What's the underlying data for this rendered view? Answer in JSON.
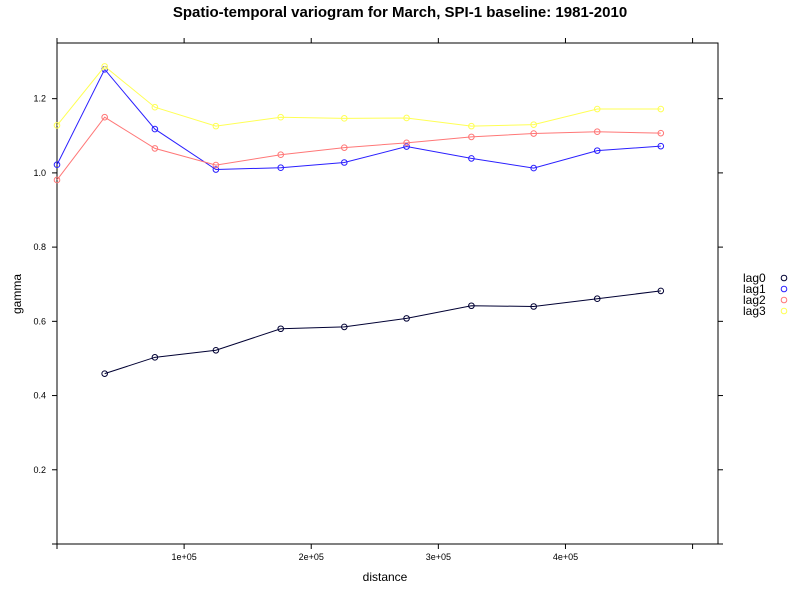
{
  "chart_data": {
    "type": "line",
    "title": "Spatio-temporal variogram for March, SPI-1 baseline: 1981-2010",
    "xlabel": "distance",
    "ylabel": "gamma",
    "xlim": [
      0,
      520000
    ],
    "ylim": [
      0,
      1.35
    ],
    "x_ticks": [
      {
        "value": 100000,
        "label": "1e+05"
      },
      {
        "value": 200000,
        "label": "2e+05"
      },
      {
        "value": 300000,
        "label": "3e+05"
      },
      {
        "value": 400000,
        "label": "4e+05"
      }
    ],
    "y_ticks": [
      {
        "value": 0.2,
        "label": "0.2"
      },
      {
        "value": 0.4,
        "label": "0.4"
      },
      {
        "value": 0.6,
        "label": "0.6"
      },
      {
        "value": 0.8,
        "label": "0.8"
      },
      {
        "value": 1.0,
        "label": "1.0"
      },
      {
        "value": 1.2,
        "label": "1.2"
      }
    ],
    "legend_position": "right",
    "grid": false,
    "series": [
      {
        "name": "lag0",
        "color": "#000033",
        "x": [
          37500,
          77000,
          125000,
          176000,
          226000,
          275000,
          326000,
          375000,
          425000,
          475000
        ],
        "y": [
          0.459,
          0.503,
          0.522,
          0.58,
          0.585,
          0.608,
          0.642,
          0.64,
          0.661,
          0.682
        ]
      },
      {
        "name": "lag1",
        "color": "#2a1fff",
        "x": [
          0,
          37500,
          77000,
          125000,
          176000,
          226000,
          275000,
          326000,
          375000,
          425000,
          475000
        ],
        "y": [
          1.022,
          1.279,
          1.118,
          1.009,
          1.014,
          1.028,
          1.071,
          1.039,
          1.013,
          1.06,
          1.072
        ]
      },
      {
        "name": "lag2",
        "color": "#ff7777",
        "x": [
          0,
          37500,
          77000,
          125000,
          176000,
          226000,
          275000,
          326000,
          375000,
          425000,
          475000
        ],
        "y": [
          0.981,
          1.15,
          1.066,
          1.021,
          1.049,
          1.068,
          1.081,
          1.097,
          1.106,
          1.111,
          1.107
        ]
      },
      {
        "name": "lag3",
        "color": "#ffff55",
        "x": [
          0,
          37500,
          77000,
          125000,
          176000,
          226000,
          275000,
          326000,
          375000,
          425000,
          475000
        ],
        "y": [
          1.128,
          1.287,
          1.177,
          1.126,
          1.15,
          1.147,
          1.148,
          1.126,
          1.13,
          1.172,
          1.172
        ]
      }
    ]
  }
}
